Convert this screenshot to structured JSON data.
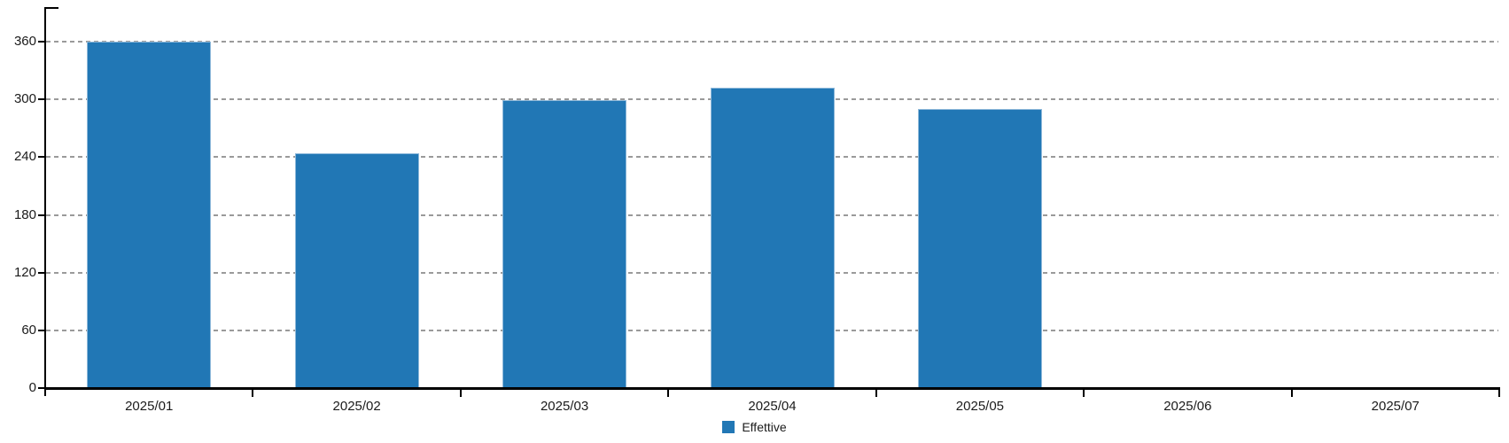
{
  "chart_data": {
    "type": "bar",
    "title": "",
    "categories": [
      "2025/01",
      "2025/02",
      "2025/03",
      "2025/04",
      "2025/05",
      "2025/06",
      "2025/07"
    ],
    "series": [
      {
        "name": "Effettive",
        "values": [
          360,
          244,
          299,
          312,
          290,
          0,
          0
        ]
      }
    ],
    "xlabel": "",
    "ylabel": "",
    "ylim": [
      0,
      395
    ],
    "yticks": [
      0,
      60,
      120,
      180,
      240,
      300,
      360
    ],
    "grid": true,
    "grid_style": "dashed",
    "legend_position": "bottom-center",
    "colors": {
      "bar": "#2177b5",
      "bar_border": "#8fb9da",
      "grid": "#9a9a9a",
      "axis": "#000000",
      "text": "#1b1b1b",
      "background": "#ffffff"
    }
  },
  "legend": {
    "label": "Effettive"
  }
}
